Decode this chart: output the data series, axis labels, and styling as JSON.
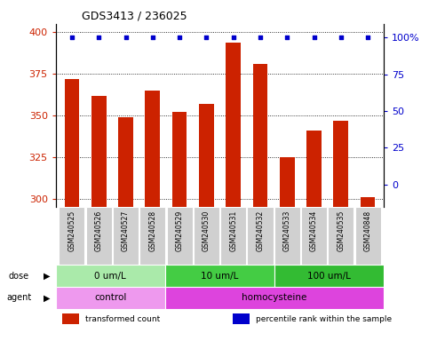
{
  "title": "GDS3413 / 236025",
  "samples": [
    "GSM240525",
    "GSM240526",
    "GSM240527",
    "GSM240528",
    "GSM240529",
    "GSM240530",
    "GSM240531",
    "GSM240532",
    "GSM240533",
    "GSM240534",
    "GSM240535",
    "GSM240848"
  ],
  "red_values": [
    372,
    362,
    349,
    365,
    352,
    357,
    394,
    381,
    325,
    341,
    347,
    301
  ],
  "blue_values": [
    100,
    100,
    100,
    100,
    100,
    100,
    100,
    100,
    100,
    100,
    100,
    100
  ],
  "dose_groups": [
    {
      "label": "0 um/L",
      "start": 0,
      "end": 4,
      "color": "#aaeaaa"
    },
    {
      "label": "10 um/L",
      "start": 4,
      "end": 8,
      "color": "#44cc44"
    },
    {
      "label": "100 um/L",
      "start": 8,
      "end": 12,
      "color": "#33bb33"
    }
  ],
  "agent_groups": [
    {
      "label": "control",
      "start": 0,
      "end": 4,
      "color": "#ee99ee"
    },
    {
      "label": "homocysteine",
      "start": 4,
      "end": 12,
      "color": "#dd44dd"
    }
  ],
  "ylim_left": [
    295,
    405
  ],
  "ylim_right": [
    -15.625,
    109.375
  ],
  "yticks_left": [
    300,
    325,
    350,
    375,
    400
  ],
  "yticks_right": [
    0,
    25,
    50,
    75,
    100
  ],
  "bar_color": "#cc2200",
  "dot_color": "#0000cc",
  "sample_box_color": "#d0d0d0",
  "legend_items": [
    {
      "color": "#cc2200",
      "marker": "s",
      "label": "transformed count"
    },
    {
      "color": "#0000cc",
      "marker": "s",
      "label": "percentile rank within the sample"
    }
  ]
}
